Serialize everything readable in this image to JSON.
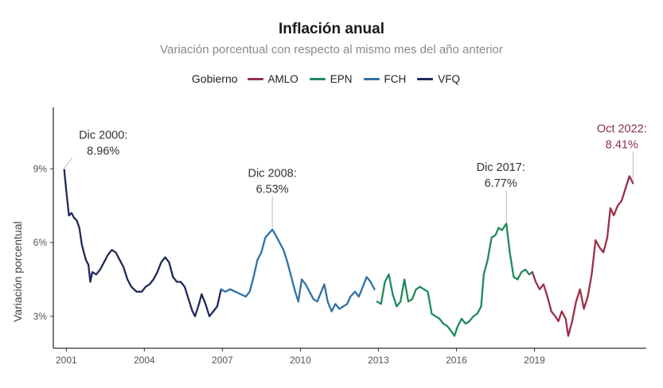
{
  "chart_data": {
    "type": "line",
    "title": "Inflación anual",
    "subtitle": "Variación porcentual con respecto al mismo mes del año anterior",
    "xlabel": "",
    "ylabel": "Variación porcentual",
    "xlim": [
      2000.5,
      2023.3
    ],
    "ylim": [
      1.7,
      11.5
    ],
    "x_ticks": [
      2001,
      2004,
      2007,
      2010,
      2013,
      2016,
      2019
    ],
    "x_tick_labels": [
      "2001",
      "2004",
      "2007",
      "2010",
      "2013",
      "2016",
      "2019"
    ],
    "y_ticks": [
      3,
      6,
      9
    ],
    "y_tick_labels": [
      "3%",
      "6%",
      "9%"
    ],
    "legend": {
      "title": "Gobierno",
      "position": "top",
      "entries": [
        "AMLO",
        "EPN",
        "FCH",
        "VFQ"
      ]
    },
    "series": [
      {
        "name": "VFQ",
        "color": "#1f2a5c",
        "points": [
          [
            2000.92,
            8.96
          ],
          [
            2001.0,
            8.1
          ],
          [
            2001.1,
            7.1
          ],
          [
            2001.2,
            7.2
          ],
          [
            2001.3,
            7.0
          ],
          [
            2001.4,
            6.9
          ],
          [
            2001.5,
            6.6
          ],
          [
            2001.6,
            5.9
          ],
          [
            2001.75,
            5.3
          ],
          [
            2001.85,
            5.1
          ],
          [
            2001.92,
            4.4
          ],
          [
            2002.0,
            4.8
          ],
          [
            2002.15,
            4.7
          ],
          [
            2002.3,
            4.9
          ],
          [
            2002.45,
            5.2
          ],
          [
            2002.6,
            5.5
          ],
          [
            2002.75,
            5.7
          ],
          [
            2002.9,
            5.6
          ],
          [
            2003.05,
            5.3
          ],
          [
            2003.2,
            5.0
          ],
          [
            2003.35,
            4.5
          ],
          [
            2003.5,
            4.2
          ],
          [
            2003.7,
            4.0
          ],
          [
            2003.9,
            4.0
          ],
          [
            2004.05,
            4.2
          ],
          [
            2004.2,
            4.3
          ],
          [
            2004.35,
            4.5
          ],
          [
            2004.5,
            4.8
          ],
          [
            2004.65,
            5.2
          ],
          [
            2004.8,
            5.4
          ],
          [
            2004.95,
            5.2
          ],
          [
            2005.1,
            4.6
          ],
          [
            2005.25,
            4.4
          ],
          [
            2005.4,
            4.4
          ],
          [
            2005.55,
            4.2
          ],
          [
            2005.7,
            3.7
          ],
          [
            2005.85,
            3.2
          ],
          [
            2005.95,
            3.0
          ],
          [
            2006.1,
            3.5
          ],
          [
            2006.2,
            3.9
          ],
          [
            2006.35,
            3.5
          ],
          [
            2006.5,
            3.0
          ],
          [
            2006.65,
            3.2
          ],
          [
            2006.8,
            3.4
          ],
          [
            2006.95,
            4.1
          ]
        ]
      },
      {
        "name": "FCH",
        "color": "#2f72a6",
        "points": [
          [
            2006.95,
            4.1
          ],
          [
            2007.1,
            4.0
          ],
          [
            2007.3,
            4.1
          ],
          [
            2007.5,
            4.0
          ],
          [
            2007.7,
            3.9
          ],
          [
            2007.9,
            3.8
          ],
          [
            2008.05,
            4.0
          ],
          [
            2008.2,
            4.6
          ],
          [
            2008.35,
            5.3
          ],
          [
            2008.5,
            5.6
          ],
          [
            2008.65,
            6.2
          ],
          [
            2008.92,
            6.53
          ],
          [
            2009.05,
            6.3
          ],
          [
            2009.2,
            6.0
          ],
          [
            2009.35,
            5.7
          ],
          [
            2009.5,
            5.2
          ],
          [
            2009.65,
            4.6
          ],
          [
            2009.8,
            4.0
          ],
          [
            2009.92,
            3.6
          ],
          [
            2010.05,
            4.5
          ],
          [
            2010.2,
            4.3
          ],
          [
            2010.35,
            4.0
          ],
          [
            2010.5,
            3.7
          ],
          [
            2010.65,
            3.6
          ],
          [
            2010.8,
            4.0
          ],
          [
            2010.92,
            4.3
          ],
          [
            2011.05,
            3.6
          ],
          [
            2011.2,
            3.2
          ],
          [
            2011.35,
            3.5
          ],
          [
            2011.5,
            3.3
          ],
          [
            2011.65,
            3.4
          ],
          [
            2011.8,
            3.5
          ],
          [
            2011.92,
            3.8
          ],
          [
            2012.1,
            4.0
          ],
          [
            2012.25,
            3.8
          ],
          [
            2012.4,
            4.2
          ],
          [
            2012.55,
            4.6
          ],
          [
            2012.7,
            4.4
          ],
          [
            2012.85,
            4.1
          ]
        ]
      },
      {
        "name": "EPN",
        "color": "#1f8a5a",
        "points": [
          [
            2012.95,
            3.6
          ],
          [
            2013.1,
            3.5
          ],
          [
            2013.25,
            4.4
          ],
          [
            2013.4,
            4.7
          ],
          [
            2013.55,
            3.9
          ],
          [
            2013.7,
            3.4
          ],
          [
            2013.85,
            3.6
          ],
          [
            2014.0,
            4.5
          ],
          [
            2014.15,
            3.6
          ],
          [
            2014.3,
            3.7
          ],
          [
            2014.45,
            4.1
          ],
          [
            2014.6,
            4.2
          ],
          [
            2014.75,
            4.1
          ],
          [
            2014.9,
            4.0
          ],
          [
            2015.05,
            3.1
          ],
          [
            2015.2,
            3.0
          ],
          [
            2015.35,
            2.9
          ],
          [
            2015.5,
            2.7
          ],
          [
            2015.65,
            2.6
          ],
          [
            2015.8,
            2.4
          ],
          [
            2015.92,
            2.2
          ],
          [
            2016.05,
            2.6
          ],
          [
            2016.2,
            2.9
          ],
          [
            2016.35,
            2.7
          ],
          [
            2016.5,
            2.8
          ],
          [
            2016.65,
            3.0
          ],
          [
            2016.8,
            3.1
          ],
          [
            2016.95,
            3.4
          ],
          [
            2017.05,
            4.7
          ],
          [
            2017.2,
            5.3
          ],
          [
            2017.35,
            6.2
          ],
          [
            2017.5,
            6.3
          ],
          [
            2017.62,
            6.6
          ],
          [
            2017.75,
            6.5
          ],
          [
            2017.92,
            6.77
          ],
          [
            2018.05,
            5.6
          ],
          [
            2018.2,
            4.6
          ],
          [
            2018.35,
            4.5
          ],
          [
            2018.5,
            4.8
          ],
          [
            2018.65,
            4.9
          ],
          [
            2018.8,
            4.7
          ],
          [
            2018.92,
            4.8
          ]
        ]
      },
      {
        "name": "AMLO",
        "color": "#9c2f4a",
        "points": [
          [
            2018.92,
            4.8
          ],
          [
            2019.05,
            4.4
          ],
          [
            2019.2,
            4.1
          ],
          [
            2019.35,
            4.3
          ],
          [
            2019.5,
            3.8
          ],
          [
            2019.65,
            3.2
          ],
          [
            2019.8,
            3.0
          ],
          [
            2019.92,
            2.8
          ],
          [
            2020.05,
            3.2
          ],
          [
            2020.2,
            2.9
          ],
          [
            2020.3,
            2.2
          ],
          [
            2020.45,
            2.8
          ],
          [
            2020.6,
            3.6
          ],
          [
            2020.75,
            4.1
          ],
          [
            2020.9,
            3.3
          ],
          [
            2021.05,
            3.8
          ],
          [
            2021.2,
            4.7
          ],
          [
            2021.35,
            6.1
          ],
          [
            2021.5,
            5.8
          ],
          [
            2021.65,
            5.6
          ],
          [
            2021.8,
            6.2
          ],
          [
            2021.92,
            7.4
          ],
          [
            2022.05,
            7.1
          ],
          [
            2022.2,
            7.5
          ],
          [
            2022.35,
            7.7
          ],
          [
            2022.5,
            8.2
          ],
          [
            2022.65,
            8.7
          ],
          [
            2022.79,
            8.41
          ]
        ]
      }
    ],
    "annotations": [
      {
        "label": "Dic 2000:",
        "value": "8.96%",
        "x": 2000.92,
        "y": 8.96,
        "color": "#333333"
      },
      {
        "label": "Dic 2008:",
        "value": "6.53%",
        "x": 2008.92,
        "y": 6.53,
        "color": "#333333"
      },
      {
        "label": "Dic 2017:",
        "value": "6.77%",
        "x": 2017.92,
        "y": 6.77,
        "color": "#333333"
      },
      {
        "label": "Oct 2022:",
        "value": "8.41%",
        "x": 2022.79,
        "y": 8.41,
        "color": "#8a2e45"
      }
    ]
  }
}
